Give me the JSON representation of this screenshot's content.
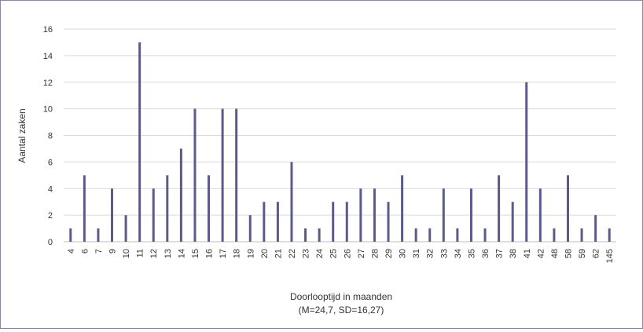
{
  "chart_data": {
    "type": "bar",
    "title": "",
    "ylabel": "Aantal zaken",
    "xlabel": "Doorlooptijd in maanden",
    "xlabel_sub": "(M=24,7, SD=16,27)",
    "ylim": [
      0,
      16
    ],
    "yticks": [
      0,
      2,
      4,
      6,
      8,
      10,
      12,
      14,
      16
    ],
    "grid": true,
    "bar_color": "#5b5a8a",
    "grid_color": "#d9d9d9",
    "categories": [
      "4",
      "6",
      "7",
      "9",
      "10",
      "11",
      "12",
      "13",
      "14",
      "15",
      "16",
      "17",
      "18",
      "19",
      "20",
      "21",
      "22",
      "23",
      "24",
      "25",
      "26",
      "27",
      "28",
      "29",
      "30",
      "31",
      "32",
      "33",
      "34",
      "35",
      "36",
      "37",
      "38",
      "41",
      "42",
      "48",
      "58",
      "59",
      "62",
      "145"
    ],
    "values": [
      1,
      5,
      1,
      4,
      2,
      15,
      4,
      5,
      7,
      10,
      5,
      10,
      10,
      2,
      3,
      3,
      6,
      1,
      1,
      3,
      3,
      4,
      4,
      3,
      5,
      1,
      1,
      4,
      1,
      4,
      1,
      5,
      3,
      12,
      4,
      1,
      5,
      1,
      2,
      1
    ]
  }
}
